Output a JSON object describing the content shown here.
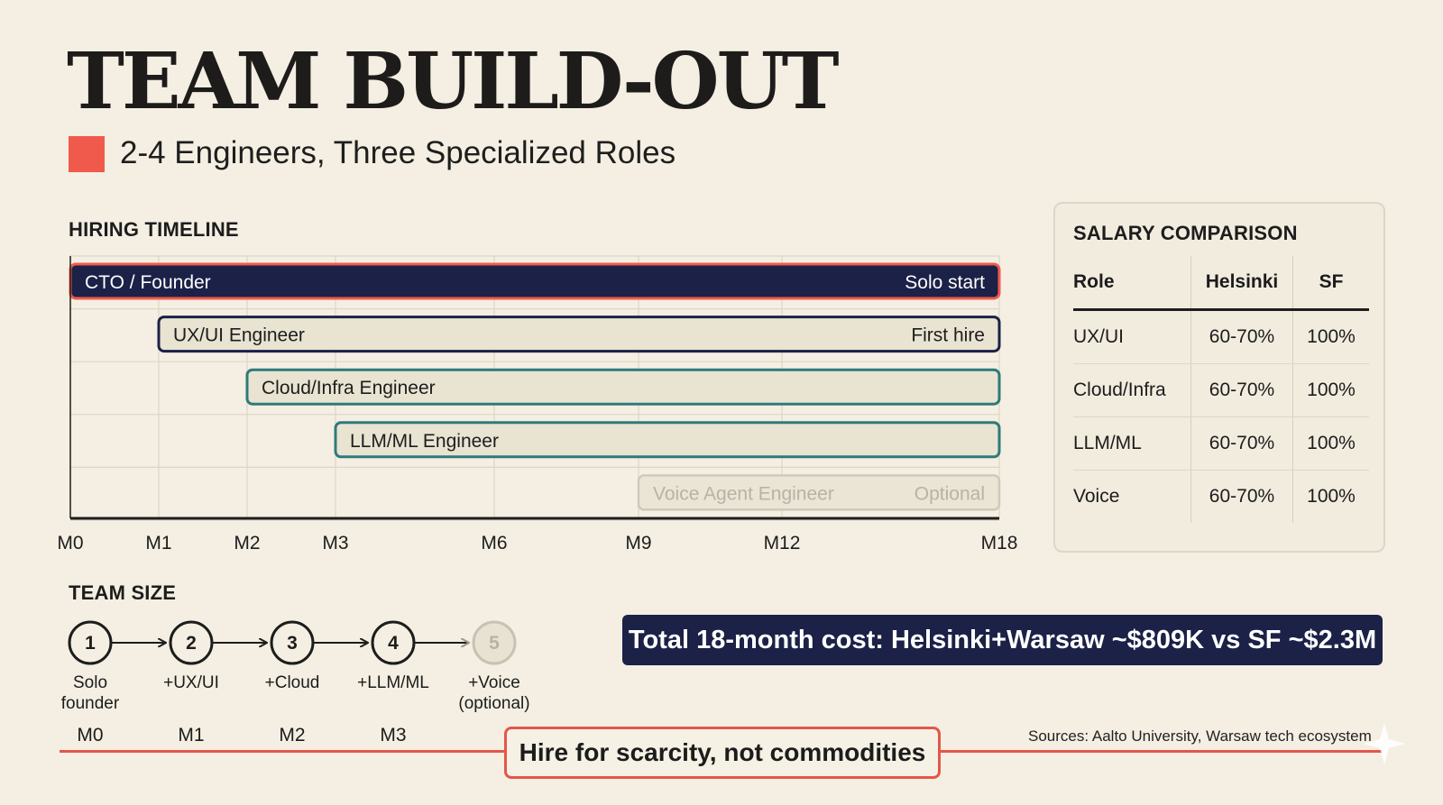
{
  "title": "TEAM BUILD-OUT",
  "subtitle": "2-4 Engineers, Three Specialized Roles",
  "colors": {
    "accent_red": "#f05a4c",
    "navy": "#1b2147",
    "teal": "#2e7a7a",
    "bar_fill": "#e9e3d2",
    "muted": "#b9b3a6"
  },
  "timeline": {
    "label": "HIRING TIMELINE",
    "months": [
      {
        "value": 0,
        "label": "M0"
      },
      {
        "value": 1,
        "label": "M1"
      },
      {
        "value": 2,
        "label": "M2"
      },
      {
        "value": 3,
        "label": "M3"
      },
      {
        "value": 6,
        "label": "M6"
      },
      {
        "value": 9,
        "label": "M9"
      },
      {
        "value": 12,
        "label": "M12"
      },
      {
        "value": 18,
        "label": "M18"
      }
    ],
    "roles": [
      {
        "name": "CTO / Founder",
        "note": "Solo start",
        "start": 0,
        "end": 18,
        "style": "primary"
      },
      {
        "name": "UX/UI Engineer",
        "note": "First hire",
        "start": 1,
        "end": 18,
        "style": "dark"
      },
      {
        "name": "Cloud/Infra Engineer",
        "note": "",
        "start": 2,
        "end": 18,
        "style": "teal"
      },
      {
        "name": "LLM/ML Engineer",
        "note": "",
        "start": 3,
        "end": 18,
        "style": "teal"
      },
      {
        "name": "Voice Agent Engineer",
        "note": "Optional",
        "start": 9,
        "end": 18,
        "style": "optional"
      }
    ]
  },
  "salary": {
    "title": "SALARY COMPARISON",
    "headers": [
      "Role",
      "Helsinki",
      "SF"
    ],
    "rows": [
      [
        "UX/UI",
        "60-70%",
        "100%"
      ],
      [
        "Cloud/Infra",
        "60-70%",
        "100%"
      ],
      [
        "LLM/ML",
        "60-70%",
        "100%"
      ],
      [
        "Voice",
        "60-70%",
        "100%"
      ]
    ]
  },
  "team_size": {
    "label": "TEAM SIZE",
    "steps": [
      {
        "num": "1",
        "label_line1": "Solo",
        "label_line2": "founder",
        "month": "M0",
        "optional": false
      },
      {
        "num": "2",
        "label_line1": "+UX/UI",
        "label_line2": "",
        "month": "M1",
        "optional": false
      },
      {
        "num": "3",
        "label_line1": "+Cloud",
        "label_line2": "",
        "month": "M2",
        "optional": false
      },
      {
        "num": "4",
        "label_line1": "+LLM/ML",
        "label_line2": "",
        "month": "M3",
        "optional": false
      },
      {
        "num": "5",
        "label_line1": "+Voice",
        "label_line2": "(optional)",
        "month": "",
        "optional": true
      }
    ]
  },
  "total_cost": "Total 18-month cost: Helsinki+Warsaw ~$809K vs SF ~$2.3M",
  "tagline": "Hire for scarcity, not commodities",
  "sources": "Sources: Aalto University, Warsaw tech ecosystem"
}
